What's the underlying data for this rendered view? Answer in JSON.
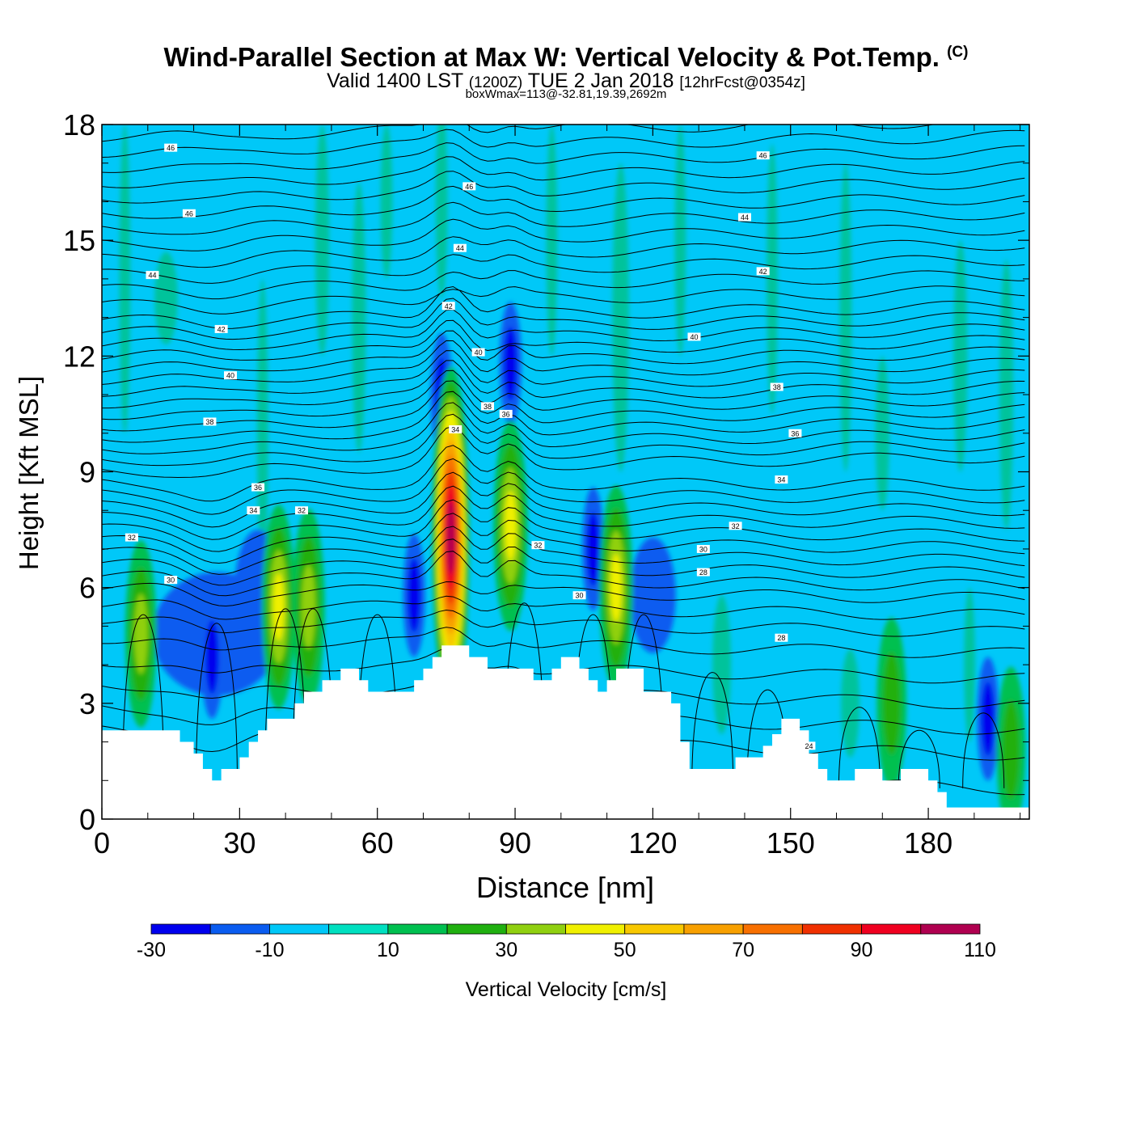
{
  "header": {
    "title": "Wind-Parallel Section at Max W: Vertical Velocity & Pot.Temp.",
    "copyright_mark": "(C)",
    "valid_prefix": "Valid 1400 LST",
    "valid_zulu": "(1200Z)",
    "valid_date": "TUE 2 Jan 2018",
    "forecast": "[12hrFcst@0354z]",
    "box_info": "boxWmax=113@-32.81,19.39,2692m"
  },
  "colors": {
    "scale": [
      "#0000ee",
      "#0a5cf0",
      "#00c8f8",
      "#00e0c0",
      "#00c050",
      "#20b010",
      "#90d010",
      "#f0f000",
      "#f8c800",
      "#f8a000",
      "#f87000",
      "#f03000",
      "#f00020",
      "#b00050"
    ],
    "background_field": "#00c8f8",
    "terrain": "#ffffff",
    "contour": "#000000"
  },
  "chart_data": {
    "type": "heatmap",
    "xlabel": "Distance [nm]",
    "ylabel": "Height [Kft MSL]",
    "xlim": [
      0,
      202
    ],
    "ylim": [
      0,
      18
    ],
    "x_ticks": [
      "0",
      "30",
      "60",
      "90",
      "120",
      "150",
      "180"
    ],
    "y_ticks": [
      "0",
      "3",
      "6",
      "9",
      "12",
      "15",
      "18"
    ],
    "x_tick_values": [
      0,
      30,
      60,
      90,
      120,
      150,
      180
    ],
    "y_tick_values": [
      0,
      3,
      6,
      9,
      12,
      15,
      18
    ],
    "colorbar": {
      "label": "Vertical Velocity [cm/s]",
      "bounds": [
        -30,
        -20,
        -10,
        0,
        10,
        20,
        30,
        40,
        50,
        60,
        70,
        80,
        90,
        100,
        110
      ],
      "tick_labels": [
        "-30",
        "-10",
        "10",
        "30",
        "50",
        "70",
        "90",
        "110"
      ]
    },
    "terrain_profile": [
      [
        0,
        2.3
      ],
      [
        17,
        2.0
      ],
      [
        20,
        1.7
      ],
      [
        22,
        1.3
      ],
      [
        24,
        1.0
      ],
      [
        26,
        1.3
      ],
      [
        30,
        1.6
      ],
      [
        32,
        2.0
      ],
      [
        34,
        2.3
      ],
      [
        36,
        2.6
      ],
      [
        42,
        3.0
      ],
      [
        44,
        3.3
      ],
      [
        48,
        3.6
      ],
      [
        52,
        3.9
      ],
      [
        56,
        3.6
      ],
      [
        58,
        3.3
      ],
      [
        62,
        3.3
      ],
      [
        66,
        3.3
      ],
      [
        68,
        3.6
      ],
      [
        70,
        3.9
      ],
      [
        72,
        4.2
      ],
      [
        74,
        4.5
      ],
      [
        78,
        4.5
      ],
      [
        80,
        4.2
      ],
      [
        84,
        3.9
      ],
      [
        90,
        3.9
      ],
      [
        94,
        3.6
      ],
      [
        98,
        3.9
      ],
      [
        100,
        4.2
      ],
      [
        104,
        3.9
      ],
      [
        106,
        3.6
      ],
      [
        108,
        3.3
      ],
      [
        110,
        3.6
      ],
      [
        112,
        3.9
      ],
      [
        116,
        3.9
      ],
      [
        118,
        3.3
      ],
      [
        124,
        3.0
      ],
      [
        126,
        2.0
      ],
      [
        128,
        1.3
      ],
      [
        136,
        1.3
      ],
      [
        138,
        1.6
      ],
      [
        144,
        1.9
      ],
      [
        146,
        2.2
      ],
      [
        148,
        2.6
      ],
      [
        152,
        2.3
      ],
      [
        154,
        1.7
      ],
      [
        156,
        1.3
      ],
      [
        158,
        1.0
      ],
      [
        162,
        1.0
      ],
      [
        164,
        1.3
      ],
      [
        166,
        1.3
      ],
      [
        170,
        1.0
      ],
      [
        172,
        1.0
      ],
      [
        174,
        1.3
      ],
      [
        178,
        1.3
      ],
      [
        180,
        1.0
      ],
      [
        182,
        0.7
      ],
      [
        184,
        0.3
      ],
      [
        202,
        0.3
      ]
    ],
    "updraft_cores": [
      {
        "x": 76,
        "y": 7.3,
        "w_max": 113
      },
      {
        "x": 89,
        "y": 7.6,
        "w_max": 45
      },
      {
        "x": 38.5,
        "y": 5.5,
        "w_max": 42
      },
      {
        "x": 45,
        "y": 5.5,
        "w_max": 38
      },
      {
        "x": 112,
        "y": 6.0,
        "w_max": 42
      },
      {
        "x": 8.5,
        "y": 4.8,
        "w_max": 33
      },
      {
        "x": 172,
        "y": 3.0,
        "w_max": 25
      },
      {
        "x": 198,
        "y": 1.8,
        "w_max": 22
      }
    ],
    "downdraft_cores": [
      {
        "x": 24,
        "y": 4.2,
        "w_min": -27
      },
      {
        "x": 68,
        "y": 5.8,
        "w_min": -30
      },
      {
        "x": 74,
        "y": 11.0,
        "w_min": -22
      },
      {
        "x": 89,
        "y": 11.8,
        "w_min": -22
      },
      {
        "x": 107,
        "y": 7.0,
        "w_min": -22
      },
      {
        "x": 193,
        "y": 2.6,
        "w_min": -25
      }
    ],
    "contour_labels": [
      {
        "text": "46",
        "x": 15,
        "y": 17.4
      },
      {
        "text": "46",
        "x": 19,
        "y": 15.7
      },
      {
        "text": "44",
        "x": 11,
        "y": 14.1
      },
      {
        "text": "42",
        "x": 26,
        "y": 12.7
      },
      {
        "text": "40",
        "x": 28,
        "y": 11.5
      },
      {
        "text": "38",
        "x": 23.5,
        "y": 10.3
      },
      {
        "text": "36",
        "x": 34,
        "y": 8.6
      },
      {
        "text": "34",
        "x": 33,
        "y": 8.0
      },
      {
        "text": "32",
        "x": 43.5,
        "y": 8.0
      },
      {
        "text": "32",
        "x": 6.5,
        "y": 7.3
      },
      {
        "text": "30",
        "x": 15,
        "y": 6.2
      },
      {
        "text": "46",
        "x": 80,
        "y": 16.4
      },
      {
        "text": "44",
        "x": 78,
        "y": 14.8
      },
      {
        "text": "42",
        "x": 75.5,
        "y": 13.3
      },
      {
        "text": "40",
        "x": 82,
        "y": 12.1
      },
      {
        "text": "38",
        "x": 84,
        "y": 10.7
      },
      {
        "text": "36",
        "x": 88,
        "y": 10.5
      },
      {
        "text": "34",
        "x": 77,
        "y": 10.1
      },
      {
        "text": "32",
        "x": 95,
        "y": 7.1
      },
      {
        "text": "30",
        "x": 104,
        "y": 5.8
      },
      {
        "text": "46",
        "x": 144,
        "y": 17.2
      },
      {
        "text": "44",
        "x": 140,
        "y": 15.6
      },
      {
        "text": "42",
        "x": 144,
        "y": 14.2
      },
      {
        "text": "40",
        "x": 129,
        "y": 12.5
      },
      {
        "text": "38",
        "x": 147,
        "y": 11.2
      },
      {
        "text": "36",
        "x": 151,
        "y": 10.0
      },
      {
        "text": "34",
        "x": 148,
        "y": 8.8
      },
      {
        "text": "32",
        "x": 138,
        "y": 7.6
      },
      {
        "text": "30",
        "x": 131,
        "y": 7.0
      },
      {
        "text": "28",
        "x": 131,
        "y": 6.4
      },
      {
        "text": "28",
        "x": 148,
        "y": 4.7
      },
      {
        "text": "24",
        "x": 154,
        "y": 1.9
      }
    ],
    "isentrope_start_heights": [
      0.8,
      1.5,
      2.3,
      2.9,
      3.5,
      4.1,
      4.7,
      5.2,
      5.6,
      6.0,
      6.3,
      6.6,
      6.9,
      7.2,
      7.5,
      7.8,
      8.1,
      8.4,
      8.7,
      9.0,
      9.3,
      9.6,
      9.9,
      10.2,
      10.5,
      10.8,
      11.1,
      11.4,
      11.7,
      12.0,
      12.3,
      12.6,
      12.9,
      13.3,
      13.7,
      14.1,
      14.5,
      14.9,
      15.3,
      15.7,
      16.1,
      16.5,
      16.9,
      17.3,
      17.7
    ]
  }
}
